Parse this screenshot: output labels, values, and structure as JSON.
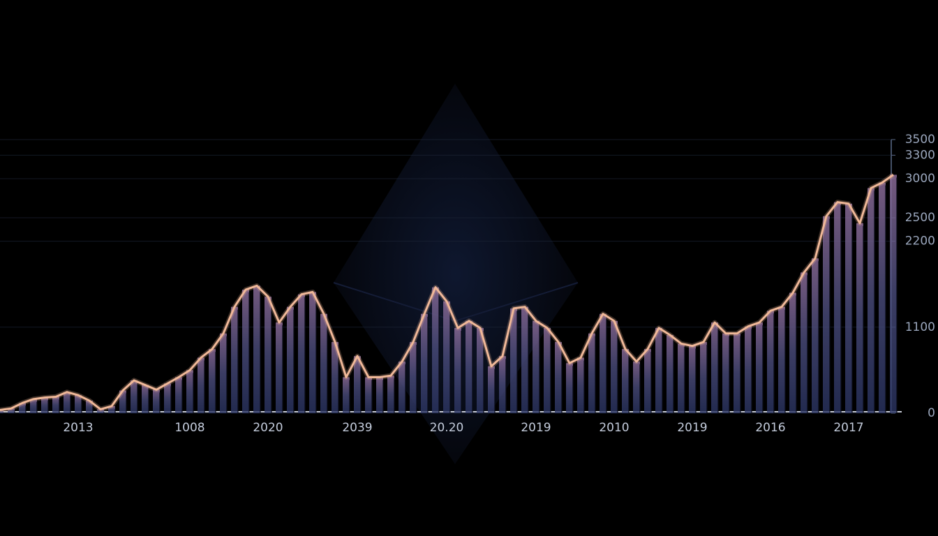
{
  "chart_data": {
    "type": "area",
    "categories": [
      null,
      null,
      null,
      null,
      null,
      null,
      null,
      "2013",
      null,
      null,
      null,
      null,
      null,
      null,
      null,
      null,
      null,
      "1008",
      null,
      null,
      null,
      null,
      null,
      null,
      "2020",
      null,
      null,
      null,
      null,
      null,
      null,
      null,
      "2039",
      null,
      null,
      null,
      null,
      null,
      null,
      null,
      "20.20",
      null,
      null,
      null,
      null,
      null,
      null,
      null,
      "2019",
      null,
      null,
      null,
      null,
      null,
      null,
      "2010",
      null,
      null,
      null,
      null,
      null,
      null,
      "2019",
      null,
      null,
      null,
      null,
      null,
      null,
      "2016",
      null,
      null,
      null,
      null,
      null,
      null,
      "2017",
      null,
      null,
      null,
      null
    ],
    "values": [
      40,
      60,
      130,
      180,
      200,
      210,
      270,
      230,
      160,
      50,
      90,
      290,
      420,
      360,
      300,
      380,
      460,
      550,
      710,
      820,
      1020,
      1360,
      1580,
      1630,
      1490,
      1160,
      1360,
      1520,
      1550,
      1270,
      910,
      460,
      730,
      460,
      460,
      480,
      660,
      910,
      1270,
      1610,
      1430,
      1090,
      1180,
      1090,
      600,
      730,
      1340,
      1360,
      1180,
      1090,
      910,
      640,
      710,
      1020,
      1270,
      1180,
      820,
      660,
      820,
      1090,
      1000,
      890,
      860,
      910,
      1160,
      1020,
      1020,
      1110,
      1160,
      1310,
      1360,
      1540,
      1800,
      1980,
      2520,
      2700,
      2680,
      2430,
      2880,
      2950,
      3050
    ],
    "color": "#f0b898",
    "ylim": [
      0,
      3500
    ],
    "yticks": [
      0,
      1100,
      2200,
      2500,
      3000,
      3300,
      3500
    ],
    "grid": true
  }
}
